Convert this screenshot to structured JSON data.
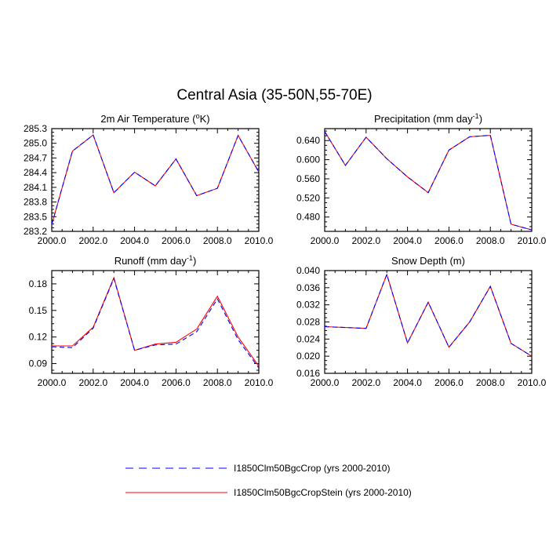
{
  "figure": {
    "title": "Central Asia (35-50N,55-70E)"
  },
  "legend": [
    {
      "label": "I1850Clm50BgcCrop (yrs 2000-2010)",
      "color": "#0000ff",
      "style": "dashed"
    },
    {
      "label": "I1850Clm50BgcCropStein (yrs 2000-2010)",
      "color": "#ff0000",
      "style": "solid"
    }
  ],
  "chart_data": [
    {
      "type": "line",
      "title": "2m Air Temperature (°K)",
      "title_parts": {
        "main": "2m Air Temperature (",
        "sup": "o",
        "tail": "K)"
      },
      "x": [
        2000,
        2001,
        2002,
        2003,
        2004,
        2005,
        2006,
        2007,
        2008,
        2009,
        2010
      ],
      "xlim": [
        2000,
        2010
      ],
      "xticks": [
        "2000.0",
        "2002.0",
        "2004.0",
        "2006.0",
        "2008.0",
        "2010.0"
      ],
      "ylim": [
        283.2,
        285.3
      ],
      "yticks": [
        "283.2",
        "283.5",
        "283.8",
        "284.1",
        "284.4",
        "284.7",
        "285.0",
        "285.3"
      ],
      "series": [
        {
          "name": "I1850Clm50BgcCrop (yrs 2000-2010)",
          "color": "#0000ff",
          "dash": true,
          "values": [
            283.34,
            284.84,
            285.17,
            283.99,
            284.41,
            284.13,
            284.68,
            283.93,
            284.08,
            285.16,
            284.41
          ]
        },
        {
          "name": "I1850Clm50BgcCropStein (yrs 2000-2010)",
          "color": "#ff0000",
          "dash": false,
          "values": [
            283.34,
            284.84,
            285.17,
            283.99,
            284.41,
            284.13,
            284.68,
            283.93,
            284.08,
            285.16,
            284.41
          ]
        }
      ]
    },
    {
      "type": "line",
      "title": "Precipitation (mm day-1)",
      "title_parts": {
        "main": "Precipitation (mm day",
        "sup": "-1",
        "tail": ")"
      },
      "x": [
        2000,
        2001,
        2002,
        2003,
        2004,
        2005,
        2006,
        2007,
        2008,
        2009,
        2010
      ],
      "xlim": [
        2000,
        2010
      ],
      "xticks": [
        "2000.0",
        "2002.0",
        "2004.0",
        "2006.0",
        "2008.0",
        "2010.0"
      ],
      "ylim": [
        0.45,
        0.665
      ],
      "yticks": [
        "0.480",
        "0.520",
        "0.560",
        "0.600",
        "0.640"
      ],
      "series": [
        {
          "name": "I1850Clm50BgcCrop (yrs 2000-2010)",
          "color": "#0000ff",
          "dash": true,
          "values": [
            0.659,
            0.588,
            0.647,
            0.602,
            0.564,
            0.531,
            0.62,
            0.648,
            0.651,
            0.465,
            0.453
          ]
        },
        {
          "name": "I1850Clm50BgcCropStein (yrs 2000-2010)",
          "color": "#ff0000",
          "dash": false,
          "values": [
            0.659,
            0.588,
            0.647,
            0.602,
            0.564,
            0.531,
            0.62,
            0.648,
            0.651,
            0.465,
            0.453
          ]
        }
      ]
    },
    {
      "type": "line",
      "title": "Runoff (mm day-1)",
      "title_parts": {
        "main": "Runoff (mm day",
        "sup": "-1",
        "tail": ")"
      },
      "x": [
        2000,
        2001,
        2002,
        2003,
        2004,
        2005,
        2006,
        2007,
        2008,
        2009,
        2010
      ],
      "xlim": [
        2000,
        2010
      ],
      "xticks": [
        "2000.0",
        "2002.0",
        "2004.0",
        "2006.0",
        "2008.0",
        "2010.0"
      ],
      "ylim": [
        0.079,
        0.195
      ],
      "yticks": [
        "0.09",
        "0.12",
        "0.15",
        "0.18"
      ],
      "series": [
        {
          "name": "I1850Clm50BgcCrop (yrs 2000-2010)",
          "color": "#0000ff",
          "dash": true,
          "values": [
            0.109,
            0.108,
            0.13,
            0.186,
            0.105,
            0.111,
            0.112,
            0.126,
            0.163,
            0.117,
            0.085
          ]
        },
        {
          "name": "I1850Clm50BgcCropStein (yrs 2000-2010)",
          "color": "#ff0000",
          "dash": false,
          "values": [
            0.11,
            0.11,
            0.131,
            0.187,
            0.105,
            0.112,
            0.114,
            0.129,
            0.166,
            0.12,
            0.087
          ]
        }
      ]
    },
    {
      "type": "line",
      "title": "Snow Depth (m)",
      "title_parts": {
        "main": "Snow Depth (m)",
        "sup": "",
        "tail": ""
      },
      "x": [
        2000,
        2001,
        2002,
        2003,
        2004,
        2005,
        2006,
        2007,
        2008,
        2009,
        2010
      ],
      "xlim": [
        2000,
        2010
      ],
      "xticks": [
        "2000.0",
        "2002.0",
        "2004.0",
        "2006.0",
        "2008.0",
        "2010.0"
      ],
      "ylim": [
        0.016,
        0.04
      ],
      "yticks": [
        "0.016",
        "0.020",
        "0.024",
        "0.028",
        "0.032",
        "0.036",
        "0.040"
      ],
      "series": [
        {
          "name": "I1850Clm50BgcCrop (yrs 2000-2010)",
          "color": "#0000ff",
          "dash": true,
          "values": [
            0.0269,
            0.0267,
            0.0265,
            0.0391,
            0.0231,
            0.0326,
            0.0221,
            0.028,
            0.0363,
            0.023,
            0.02
          ]
        },
        {
          "name": "I1850Clm50BgcCropStein (yrs 2000-2010)",
          "color": "#ff0000",
          "dash": false,
          "values": [
            0.0269,
            0.0267,
            0.0265,
            0.0391,
            0.0231,
            0.0326,
            0.0221,
            0.028,
            0.0363,
            0.023,
            0.02
          ]
        }
      ]
    }
  ]
}
